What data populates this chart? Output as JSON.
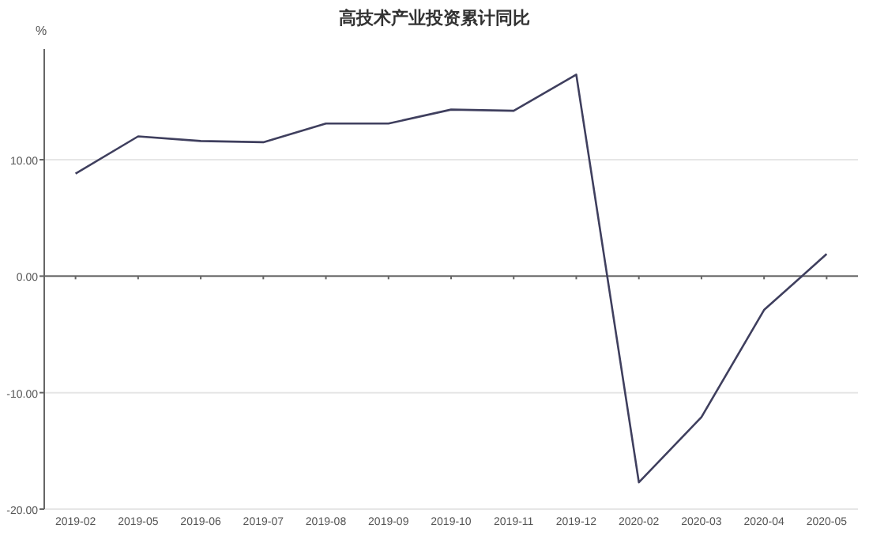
{
  "chart_data": {
    "type": "line",
    "title": "高技术产业投资累计同比",
    "ylabel": "%",
    "categories": [
      "2019-02",
      "2019-05",
      "2019-06",
      "2019-07",
      "2019-08",
      "2019-09",
      "2019-10",
      "2019-11",
      "2019-12",
      "2020-02",
      "2020-03",
      "2020-04",
      "2020-05"
    ],
    "series": [
      {
        "color": "#3f3f5e",
        "values": [
          8.8,
          12.0,
          11.6,
          11.5,
          13.1,
          13.1,
          14.3,
          14.2,
          17.3,
          -17.7,
          -12.1,
          -2.9,
          1.9
        ]
      }
    ],
    "ylim": [
      -20,
      19.5
    ],
    "yticks": [
      {
        "value": -20,
        "label": "-20.00"
      },
      {
        "value": -10,
        "label": "-10.00"
      },
      {
        "value": 0,
        "label": "0.00"
      },
      {
        "value": 10,
        "label": "10.00"
      }
    ],
    "grid": "y",
    "marker": "none",
    "line_style": "solid"
  }
}
